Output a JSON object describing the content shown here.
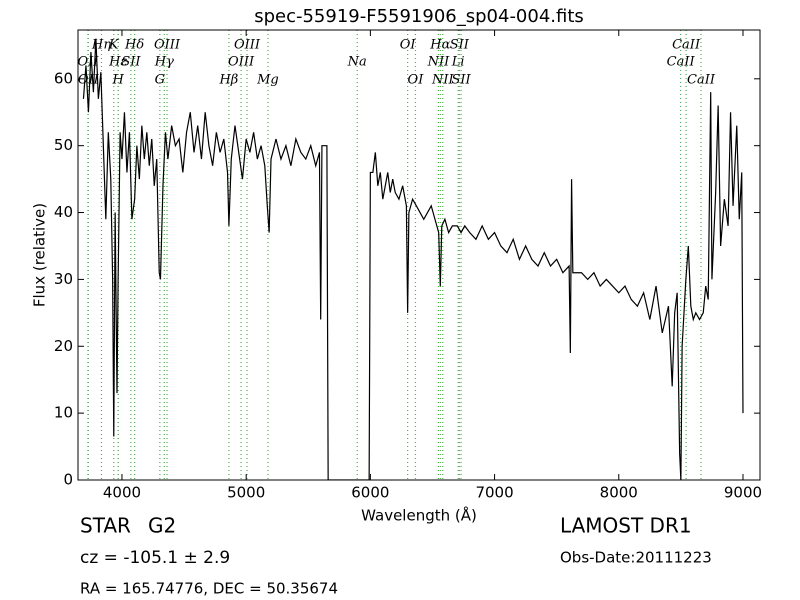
{
  "chart_data": {
    "type": "line",
    "title": "spec-55919-F5591906_sp04-004.fits",
    "x_label": "Wavelength (Å)",
    "y_label": "Flux (relative)",
    "xlim": [
      3646,
      9137
    ],
    "ylim": [
      0,
      67.3
    ],
    "xticks": [
      4000,
      5000,
      6000,
      7000,
      8000,
      9000
    ],
    "yticks": [
      0,
      10,
      20,
      30,
      40,
      50,
      60
    ],
    "grid": false,
    "x": [
      3690,
      3710,
      3730,
      3750,
      3770,
      3790,
      3810,
      3830,
      3850,
      3870,
      3890,
      3910,
      3925,
      3934,
      3945,
      3960,
      3969,
      3985,
      4000,
      4020,
      4040,
      4060,
      4080,
      4102,
      4120,
      4140,
      4160,
      4180,
      4200,
      4220,
      4240,
      4260,
      4280,
      4300,
      4310,
      4330,
      4350,
      4370,
      4400,
      4430,
      4460,
      4490,
      4520,
      4550,
      4580,
      4610,
      4640,
      4670,
      4700,
      4730,
      4760,
      4790,
      4820,
      4850,
      4861,
      4880,
      4910,
      4940,
      4970,
      5000,
      5030,
      5060,
      5090,
      5120,
      5150,
      5170,
      5185,
      5200,
      5240,
      5280,
      5320,
      5360,
      5400,
      5440,
      5480,
      5520,
      5560,
      5590,
      5600,
      5610,
      5640,
      5650,
      5660,
      5700,
      5800,
      5900,
      5990,
      6000,
      6020,
      6040,
      6060,
      6080,
      6100,
      6120,
      6140,
      6160,
      6180,
      6200,
      6230,
      6260,
      6290,
      6300,
      6310,
      6340,
      6370,
      6400,
      6430,
      6460,
      6490,
      6520,
      6550,
      6563,
      6575,
      6600,
      6630,
      6660,
      6700,
      6730,
      6760,
      6800,
      6850,
      6900,
      6950,
      7000,
      7050,
      7100,
      7150,
      7200,
      7250,
      7300,
      7350,
      7400,
      7450,
      7500,
      7550,
      7600,
      7610,
      7620,
      7630,
      7700,
      7750,
      7800,
      7850,
      7900,
      7950,
      8000,
      8050,
      8100,
      8150,
      8200,
      8250,
      8300,
      8350,
      8400,
      8430,
      8450,
      8470,
      8490,
      8500,
      8510,
      8540,
      8560,
      8580,
      8600,
      8620,
      8650,
      8680,
      8700,
      8720,
      8740,
      8750,
      8780,
      8800,
      8820,
      8850,
      8880,
      8900,
      8920,
      8950,
      8970,
      8990,
      9000
    ],
    "series": [
      {
        "color": "#000000",
        "values": [
          57,
          62,
          55,
          64,
          58,
          66,
          57,
          61,
          50,
          39,
          52,
          45,
          30,
          6.5,
          40,
          13,
          30,
          52,
          48,
          55,
          46,
          52,
          39,
          42,
          50,
          45,
          53,
          48,
          52,
          47,
          51,
          44,
          48,
          31,
          30,
          44,
          52,
          48,
          53,
          50,
          51,
          46,
          52,
          55,
          49,
          53,
          48,
          55,
          50,
          47,
          52,
          49,
          51,
          46,
          38,
          48,
          53,
          49,
          45,
          51,
          49,
          52,
          48,
          50,
          47,
          41,
          37,
          48,
          51,
          48,
          50,
          47,
          51,
          49,
          48,
          50,
          47,
          49,
          24,
          50,
          50,
          50,
          0,
          0,
          0,
          0,
          0,
          46,
          46,
          49,
          44,
          46,
          42,
          44,
          46,
          43,
          45,
          43,
          42,
          44,
          41,
          25,
          40,
          42,
          41,
          40,
          39,
          40,
          41,
          39,
          37,
          29,
          38,
          39,
          37,
          38,
          38,
          37,
          38,
          37,
          36,
          38,
          36,
          37,
          35,
          34,
          36,
          33,
          35,
          33,
          32,
          34,
          32,
          33,
          31,
          32,
          19,
          45,
          31,
          31,
          30,
          31,
          29,
          30,
          29,
          28,
          29,
          27,
          26,
          28,
          24,
          29,
          22,
          26,
          14,
          25,
          28,
          4,
          0,
          20,
          30,
          35,
          26,
          24,
          25,
          24,
          25,
          29,
          27,
          58,
          30,
          43,
          56,
          35,
          42,
          38,
          55,
          41,
          53,
          39,
          46,
          10
        ]
      }
    ],
    "line_color": "#4daf4a",
    "lines": [
      {
        "label": "OII",
        "x": 3726
      },
      {
        "label": "OII",
        "x": 3729
      },
      {
        "label": "Hη",
        "x": 3835
      },
      {
        "label": "K",
        "x": 3934
      },
      {
        "label": "H",
        "x": 3969
      },
      {
        "label": "Hε",
        "x": 3970
      },
      {
        "label": "SII",
        "x": 4072
      },
      {
        "label": "Hδ",
        "x": 4102
      },
      {
        "label": "G",
        "x": 4305
      },
      {
        "label": "Hγ",
        "x": 4341
      },
      {
        "label": "OIII",
        "x": 4363
      },
      {
        "label": "Hβ",
        "x": 4861
      },
      {
        "label": "OIII",
        "x": 4959
      },
      {
        "label": "OIII",
        "x": 5007
      },
      {
        "label": "Mg",
        "x": 5175
      },
      {
        "label": "Na",
        "x": 5894
      },
      {
        "label": "OI",
        "x": 6300
      },
      {
        "label": "OI",
        "x": 6363
      },
      {
        "label": "NII",
        "x": 6548
      },
      {
        "label": "Hα",
        "x": 6563
      },
      {
        "label": "NII",
        "x": 6583
      },
      {
        "label": "Li",
        "x": 6707
      },
      {
        "label": "SII",
        "x": 6716
      },
      {
        "label": "SII",
        "x": 6730
      },
      {
        "label": "CaII",
        "x": 8498
      },
      {
        "label": "CaII",
        "x": 8542
      },
      {
        "label": "CaII",
        "x": 8662
      }
    ],
    "class_label": "STAR",
    "subclass_label": "G2",
    "redshift_label": "cz = -105.1  ± 2.9",
    "coords_label": "RA = 165.74776, DEC = 50.35674",
    "survey_label": "LAMOST DR1",
    "obs_date_label": "Obs-Date:20111223"
  }
}
